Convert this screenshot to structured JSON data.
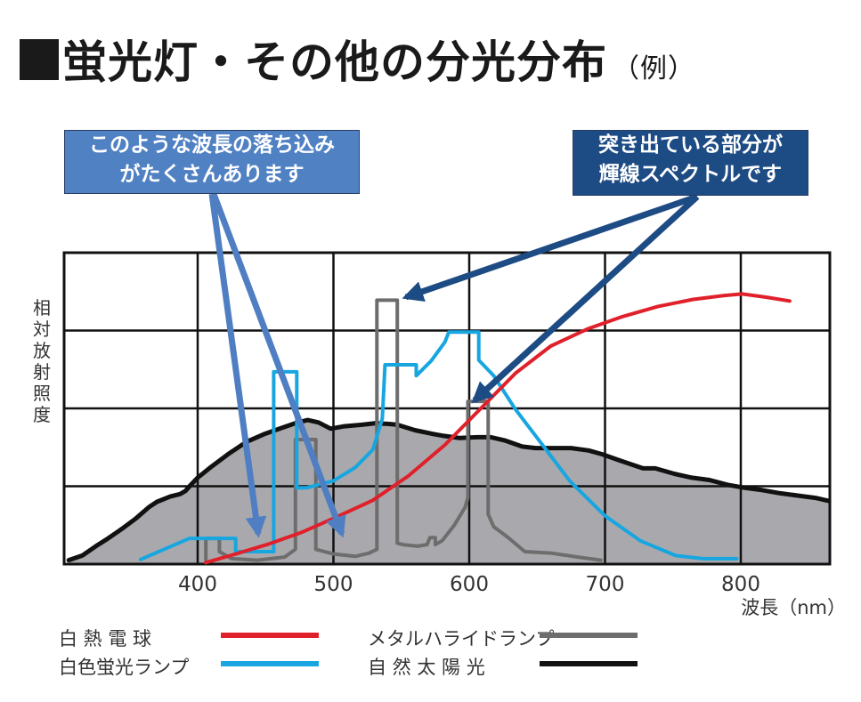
{
  "title": {
    "main": "蛍光灯・その他の分光分布",
    "suffix": "（例）"
  },
  "callouts": {
    "left": {
      "line1": "このような波長の落ち込み",
      "line2": "がたくさんあります",
      "color": "#5081c3"
    },
    "right": {
      "line1": "突き出ている部分が",
      "line2": "輝線スペクトルです",
      "color": "#1d4b84"
    }
  },
  "chart_data": {
    "type": "line",
    "title": "蛍光灯・その他の分光分布（例）",
    "xlabel": "波長（nm）",
    "ylabel": "相対放射照度",
    "xlim": [
      300,
      865
    ],
    "ylim": [
      0,
      4
    ],
    "xticks": [
      400,
      500,
      600,
      700,
      800
    ],
    "xtick_labels": [
      "400",
      "500",
      "600",
      "700",
      "800"
    ],
    "grid": true,
    "legend_position": "bottom",
    "series": [
      {
        "name": "白熱電球",
        "key": "incandescent",
        "color": "#e0202a",
        "fill": false,
        "points": [
          [
            406,
            0.02
          ],
          [
            424,
            0.11
          ],
          [
            451,
            0.25
          ],
          [
            477,
            0.41
          ],
          [
            503,
            0.61
          ],
          [
            529,
            0.82
          ],
          [
            555,
            1.13
          ],
          [
            582,
            1.53
          ],
          [
            608,
            1.99
          ],
          [
            634,
            2.45
          ],
          [
            660,
            2.8
          ],
          [
            687,
            3.02
          ],
          [
            713,
            3.18
          ],
          [
            739,
            3.31
          ],
          [
            765,
            3.4
          ],
          [
            788,
            3.45
          ],
          [
            801,
            3.47
          ],
          [
            818,
            3.43
          ],
          [
            836,
            3.38
          ]
        ]
      },
      {
        "name": "白色蛍光ランプ",
        "key": "fluorescent",
        "color": "#17a6e0",
        "fill": false,
        "points": [
          [
            358,
            0.06
          ],
          [
            394,
            0.33
          ],
          [
            428,
            0.33
          ],
          [
            428,
            0.16
          ],
          [
            456,
            0.16
          ],
          [
            456,
            2.47
          ],
          [
            473,
            2.47
          ],
          [
            473,
            0.98
          ],
          [
            480,
            0.98
          ],
          [
            500,
            1.07
          ],
          [
            516,
            1.24
          ],
          [
            529,
            1.47
          ],
          [
            536,
            1.87
          ],
          [
            538,
            2.56
          ],
          [
            561,
            2.56
          ],
          [
            561,
            2.42
          ],
          [
            572,
            2.61
          ],
          [
            582,
            2.85
          ],
          [
            585,
            2.98
          ],
          [
            607,
            2.98
          ],
          [
            607,
            2.62
          ],
          [
            618,
            2.42
          ],
          [
            634,
            1.99
          ],
          [
            654,
            1.53
          ],
          [
            674,
            1.07
          ],
          [
            700,
            0.62
          ],
          [
            726,
            0.3
          ],
          [
            752,
            0.11
          ],
          [
            772,
            0.07
          ],
          [
            797,
            0.07
          ]
        ]
      },
      {
        "name": "メタルハライドランプ",
        "key": "metal_halide",
        "color": "#6d6d6d",
        "fill": false,
        "points": [
          [
            406,
            0.05
          ],
          [
            406,
            0.33
          ],
          [
            416,
            0.33
          ],
          [
            416,
            0.16
          ],
          [
            425,
            0.07
          ],
          [
            444,
            0.05
          ],
          [
            464,
            0.09
          ],
          [
            472,
            0.19
          ],
          [
            472,
            1.6
          ],
          [
            487,
            1.6
          ],
          [
            487,
            0.19
          ],
          [
            500,
            0.13
          ],
          [
            516,
            0.1
          ],
          [
            526,
            0.14
          ],
          [
            532,
            0.19
          ],
          [
            532,
            3.39
          ],
          [
            547,
            3.39
          ],
          [
            547,
            0.27
          ],
          [
            551,
            0.25
          ],
          [
            562,
            0.23
          ],
          [
            569,
            0.25
          ],
          [
            571,
            0.34
          ],
          [
            575,
            0.34
          ],
          [
            575,
            0.25
          ],
          [
            580,
            0.3
          ],
          [
            589,
            0.5
          ],
          [
            597,
            0.73
          ],
          [
            599,
            0.85
          ],
          [
            599,
            2.09
          ],
          [
            614,
            2.09
          ],
          [
            614,
            0.64
          ],
          [
            618,
            0.48
          ],
          [
            628,
            0.35
          ],
          [
            641,
            0.16
          ],
          [
            661,
            0.14
          ],
          [
            680,
            0.09
          ],
          [
            697,
            0.05
          ]
        ]
      },
      {
        "name": "自然太陽光",
        "key": "sunlight",
        "color": "#111111",
        "fill": true,
        "fill_color": "#a9a9ad",
        "points": [
          [
            305,
            0.05
          ],
          [
            315,
            0.11
          ],
          [
            325,
            0.23
          ],
          [
            334,
            0.33
          ],
          [
            344,
            0.45
          ],
          [
            354,
            0.58
          ],
          [
            364,
            0.73
          ],
          [
            370,
            0.8
          ],
          [
            380,
            0.87
          ],
          [
            387,
            0.9
          ],
          [
            391,
            0.94
          ],
          [
            395,
            1.02
          ],
          [
            400,
            1.11
          ],
          [
            410,
            1.25
          ],
          [
            423,
            1.42
          ],
          [
            436,
            1.57
          ],
          [
            449,
            1.67
          ],
          [
            462,
            1.75
          ],
          [
            472,
            1.81
          ],
          [
            481,
            1.85
          ],
          [
            489,
            1.82
          ],
          [
            498,
            1.74
          ],
          [
            508,
            1.77
          ],
          [
            521,
            1.79
          ],
          [
            531,
            1.81
          ],
          [
            541,
            1.8
          ],
          [
            547,
            1.79
          ],
          [
            560,
            1.72
          ],
          [
            574,
            1.67
          ],
          [
            580,
            1.65
          ],
          [
            593,
            1.62
          ],
          [
            606,
            1.63
          ],
          [
            616,
            1.63
          ],
          [
            626,
            1.59
          ],
          [
            639,
            1.51
          ],
          [
            649,
            1.49
          ],
          [
            662,
            1.49
          ],
          [
            675,
            1.49
          ],
          [
            688,
            1.46
          ],
          [
            698,
            1.41
          ],
          [
            711,
            1.33
          ],
          [
            728,
            1.23
          ],
          [
            737,
            1.23
          ],
          [
            751,
            1.16
          ],
          [
            764,
            1.11
          ],
          [
            777,
            1.08
          ],
          [
            790,
            1.02
          ],
          [
            803,
            0.98
          ],
          [
            816,
            0.95
          ],
          [
            829,
            0.91
          ],
          [
            842,
            0.88
          ],
          [
            855,
            0.85
          ],
          [
            865,
            0.81
          ]
        ]
      }
    ]
  },
  "legend": {
    "items": [
      {
        "label": "白 熱 電 球",
        "color": "#e0202a"
      },
      {
        "label": "白色蛍光ランプ",
        "color": "#17a6e0"
      },
      {
        "label": "メタルハライドランプ",
        "color": "#6d6d6d"
      },
      {
        "label": "自 然 太 陽 光",
        "color": "#111111"
      }
    ]
  }
}
